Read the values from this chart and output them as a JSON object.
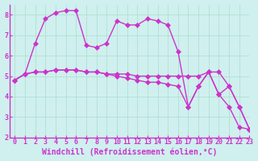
{
  "bg_color": "#cff0ee",
  "line_color": "#cc33cc",
  "grid_color": "#aaddcc",
  "xlabel": "Windchill (Refroidissement éolien,°C)",
  "ylim": [
    2,
    8.5
  ],
  "xlim": [
    -0.5,
    23
  ],
  "yticks": [
    2,
    3,
    4,
    5,
    6,
    7,
    8
  ],
  "xticks": [
    0,
    1,
    2,
    3,
    4,
    5,
    6,
    7,
    8,
    9,
    10,
    11,
    12,
    13,
    14,
    15,
    16,
    17,
    18,
    19,
    20,
    21,
    22,
    23
  ],
  "series1_x": [
    0,
    1,
    2,
    3,
    4,
    5,
    6,
    7,
    8,
    9,
    10,
    11,
    12,
    13,
    14,
    15,
    16,
    17,
    18,
    19,
    20,
    21,
    22,
    23
  ],
  "series1_y": [
    4.8,
    5.1,
    5.2,
    5.2,
    5.3,
    5.3,
    5.3,
    5.2,
    5.2,
    5.1,
    5.1,
    5.1,
    5.0,
    5.0,
    5.0,
    5.0,
    5.0,
    5.0,
    5.0,
    5.2,
    5.2,
    4.5,
    3.5,
    2.4
  ],
  "series2_x": [
    0,
    1,
    2,
    3,
    4,
    5,
    6,
    7,
    8,
    9,
    10,
    11,
    12,
    13,
    14,
    15,
    16,
    17,
    18,
    19,
    20,
    21,
    22,
    23
  ],
  "series2_y": [
    4.8,
    5.1,
    5.2,
    5.2,
    5.3,
    5.3,
    5.3,
    5.2,
    5.2,
    5.1,
    5.0,
    4.9,
    4.8,
    4.7,
    4.7,
    4.6,
    4.5,
    3.5,
    4.5,
    5.2,
    4.1,
    4.5,
    3.5,
    2.4
  ],
  "series3_x": [
    0,
    1,
    2,
    3,
    4,
    5,
    6,
    7,
    8,
    9,
    10,
    11,
    12,
    13,
    14,
    15,
    16,
    17,
    18,
    19,
    20,
    21,
    22,
    23
  ],
  "series3_y": [
    4.8,
    5.1,
    6.6,
    7.8,
    8.1,
    8.2,
    8.2,
    6.5,
    6.4,
    6.6,
    7.7,
    7.5,
    7.5,
    7.8,
    7.7,
    7.5,
    6.2,
    3.5,
    4.5,
    5.2,
    4.1,
    3.5,
    2.5,
    2.4
  ],
  "marker": "D",
  "markersize": 3,
  "linewidth": 1.0,
  "tick_fontsize": 6,
  "label_fontsize": 7,
  "figsize": [
    3.2,
    2.0
  ],
  "dpi": 100
}
